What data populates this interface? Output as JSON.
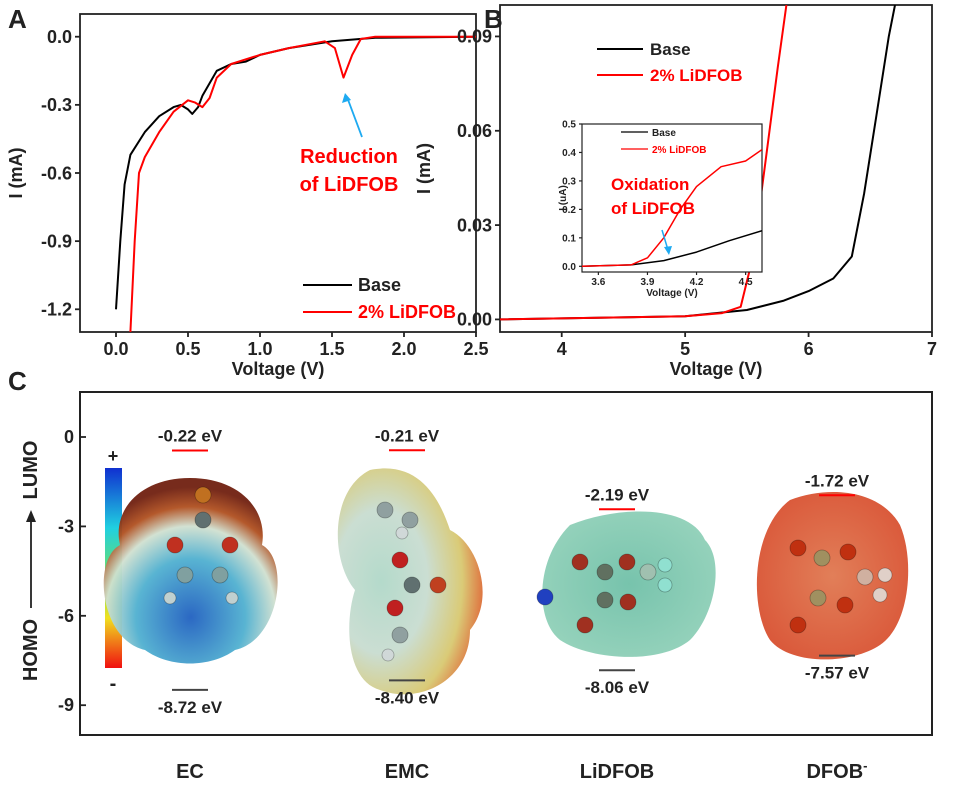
{
  "panel_labels": {
    "a": "A",
    "b": "B",
    "c": "C"
  },
  "colors": {
    "base": "#000000",
    "lidfob": "#ff0000",
    "arrow": "#1eaaf1"
  },
  "chart_data": [
    {
      "type": "line",
      "panel": "A",
      "xlabel": "Voltage (V)",
      "ylabel": "I (mA)",
      "xlim": [
        -0.25,
        2.5
      ],
      "ylim": [
        -1.3,
        0.1
      ],
      "xticks": [
        "0.0",
        "0.5",
        "1.0",
        "1.5",
        "2.0",
        "2.5"
      ],
      "xtick_values": [
        0,
        0.5,
        1,
        1.5,
        2,
        2.5
      ],
      "yticks": [
        "0.0",
        "-0.3",
        "-0.6",
        "-0.9",
        "-1.2"
      ],
      "ytick_values": [
        0,
        -0.3,
        -0.6,
        -0.9,
        -1.2
      ],
      "legend": "bottom-right",
      "annotation": [
        "Reduction",
        "of LiDFOB"
      ],
      "series": [
        {
          "name": "Base",
          "x": [
            0,
            0.03,
            0.06,
            0.1,
            0.2,
            0.3,
            0.4,
            0.45,
            0.5,
            0.53,
            0.57,
            0.6,
            0.7,
            0.8,
            0.9,
            1.0,
            1.2,
            1.5,
            1.8,
            2.5
          ],
          "y": [
            -1.2,
            -0.9,
            -0.65,
            -0.52,
            -0.42,
            -0.35,
            -0.31,
            -0.3,
            -0.32,
            -0.34,
            -0.31,
            -0.26,
            -0.15,
            -0.12,
            -0.11,
            -0.08,
            -0.05,
            -0.02,
            -0.005,
            0
          ]
        },
        {
          "name": "2% LiDFOB",
          "x": [
            0.1,
            0.13,
            0.16,
            0.2,
            0.3,
            0.4,
            0.5,
            0.55,
            0.6,
            0.65,
            0.7,
            0.8,
            1.0,
            1.2,
            1.45,
            1.52,
            1.58,
            1.64,
            1.7,
            1.8,
            2.5
          ],
          "y": [
            -1.3,
            -0.9,
            -0.6,
            -0.53,
            -0.42,
            -0.33,
            -0.28,
            -0.29,
            -0.31,
            -0.27,
            -0.18,
            -0.12,
            -0.08,
            -0.05,
            -0.02,
            -0.05,
            -0.18,
            -0.08,
            -0.01,
            0,
            0
          ]
        }
      ]
    },
    {
      "type": "line",
      "panel": "B",
      "xlabel": "Voltage (V)",
      "ylabel": "I (mA)",
      "xlim": [
        3.5,
        7
      ],
      "ylim": [
        -0.004,
        0.1
      ],
      "xticks": [
        "4",
        "5",
        "6",
        "7"
      ],
      "xtick_values": [
        4,
        5,
        6,
        7
      ],
      "yticks": [
        "0.00",
        "0.03",
        "0.06",
        "0.09"
      ],
      "ytick_values": [
        0,
        0.03,
        0.06,
        0.09
      ],
      "legend": "top-left",
      "series": [
        {
          "name": "Base",
          "x": [
            3.5,
            5,
            5.5,
            5.8,
            6.0,
            6.2,
            6.35,
            6.45,
            6.55,
            6.65,
            6.7
          ],
          "y": [
            0,
            0.001,
            0.003,
            0.006,
            0.009,
            0.013,
            0.02,
            0.04,
            0.065,
            0.09,
            0.1
          ]
        },
        {
          "name": "2% LiDFOB",
          "x": [
            3.5,
            5,
            5.3,
            5.45,
            5.55,
            5.65,
            5.75,
            5.82
          ],
          "y": [
            0,
            0.001,
            0.002,
            0.004,
            0.02,
            0.05,
            0.08,
            0.1
          ]
        }
      ],
      "inset": {
        "xlabel": "Voltage (V)",
        "ylabel": "I (uA)",
        "xlim": [
          3.5,
          4.6
        ],
        "ylim": [
          -0.02,
          0.5
        ],
        "xticks": [
          "3.6",
          "3.9",
          "4.2",
          "4.5"
        ],
        "xtick_values": [
          3.6,
          3.9,
          4.2,
          4.5
        ],
        "yticks": [
          "0.0",
          "0.1",
          "0.2",
          "0.3",
          "0.4",
          "0.5"
        ],
        "ytick_values": [
          0,
          0.1,
          0.2,
          0.3,
          0.4,
          0.5
        ],
        "annotation": [
          "Oxidation",
          "of LiDFOB"
        ],
        "series": [
          {
            "name": "Base",
            "x": [
              3.5,
              3.8,
              4.0,
              4.2,
              4.4,
              4.6
            ],
            "y": [
              0,
              0.005,
              0.02,
              0.05,
              0.09,
              0.125
            ]
          },
          {
            "name": "2% LiDFOB",
            "x": [
              3.5,
              3.8,
              3.9,
              4.0,
              4.1,
              4.2,
              4.35,
              4.5,
              4.6
            ],
            "y": [
              0,
              0.005,
              0.03,
              0.1,
              0.2,
              0.28,
              0.35,
              0.37,
              0.41
            ]
          }
        ]
      }
    },
    {
      "type": "diagram",
      "panel": "C",
      "ylabel_top": "LUMO",
      "ylabel_bottom": "HOMO",
      "ylim": [
        -10,
        1.5
      ],
      "yticks": [
        "0",
        "-3",
        "-6",
        "-9"
      ],
      "ytick_values": [
        0,
        -3,
        -6,
        -9
      ],
      "colorbar": {
        "plus": "+",
        "minus": "-"
      },
      "molecules": [
        {
          "name": "EC",
          "lumo": -0.22,
          "homo": -8.72,
          "lumo_label": "-0.22 eV",
          "homo_label": "-8.72 eV"
        },
        {
          "name": "EMC",
          "lumo": -0.21,
          "homo": -8.4,
          "lumo_label": "-0.21 eV",
          "homo_label": "-8.40 eV"
        },
        {
          "name": "LiDFOB",
          "lumo": -2.19,
          "homo": -8.06,
          "lumo_label": "-2.19 eV",
          "homo_label": "-8.06 eV"
        },
        {
          "name": "DFOB",
          "name_sup": "-",
          "lumo": -1.72,
          "homo": -7.57,
          "lumo_label": "-1.72 eV",
          "homo_label": "-7.57 eV"
        }
      ]
    }
  ]
}
